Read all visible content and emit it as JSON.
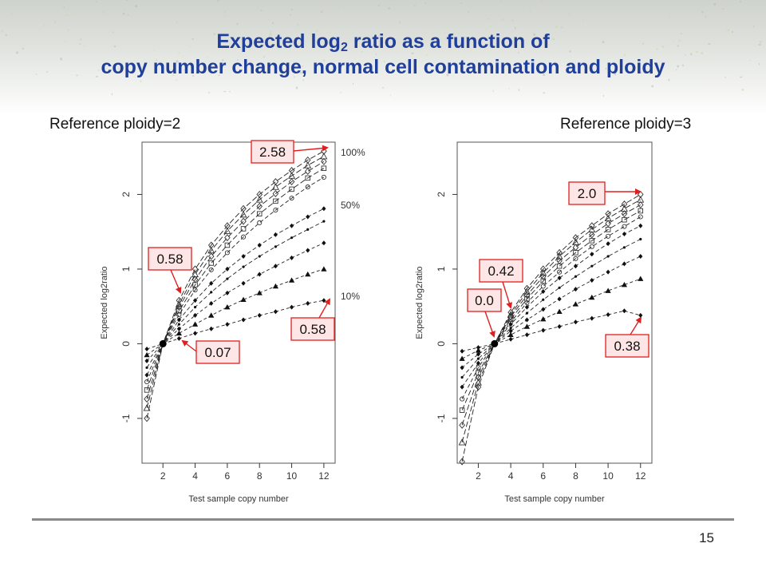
{
  "slide": {
    "title_line1_a": "Expected log",
    "title_line1_sub": "2",
    "title_line1_b": " ratio as a function of",
    "title_line2": "copy number change, normal cell contamination and ploidy",
    "page_number": "15"
  },
  "panels": {
    "left_label": "Reference ploidy=2",
    "right_label": "Reference ploidy=3"
  },
  "colors": {
    "title": "#1f3f9b",
    "arrow": "#e02020",
    "callout_fill": "#ffe6e6",
    "callout_border": "#e02020"
  },
  "chart_data": [
    {
      "type": "line",
      "reference_ploidy": 2,
      "xlabel": "Test sample copy number",
      "ylabel": "Expected log2ratio",
      "xlim": [
        0.7,
        12.7
      ],
      "ylim": [
        -1.6,
        2.7
      ],
      "xticks": [
        2,
        4,
        6,
        8,
        10,
        12
      ],
      "yticks": [
        -1,
        0,
        1,
        2
      ],
      "x": [
        1,
        2,
        3,
        4,
        5,
        6,
        7,
        8,
        9,
        10,
        11,
        12
      ],
      "series": [
        {
          "purity": 1.0,
          "values": [
            -1.0,
            0.0,
            0.58,
            1.0,
            1.32,
            1.58,
            1.81,
            2.0,
            2.17,
            2.32,
            2.46,
            2.58
          ]
        },
        {
          "purity": 0.9,
          "values": [
            -0.86,
            0.0,
            0.53,
            0.93,
            1.25,
            1.51,
            1.73,
            1.93,
            2.1,
            2.25,
            2.39,
            2.51
          ]
        },
        {
          "purity": 0.8,
          "values": [
            -0.74,
            0.0,
            0.49,
            0.86,
            1.17,
            1.42,
            1.64,
            1.84,
            2.01,
            2.17,
            2.31,
            2.44
          ]
        },
        {
          "purity": 0.7,
          "values": [
            -0.62,
            0.0,
            0.44,
            0.79,
            1.08,
            1.32,
            1.54,
            1.74,
            1.91,
            2.07,
            2.22,
            2.35
          ]
        },
        {
          "purity": 0.6,
          "values": [
            -0.51,
            0.0,
            0.39,
            0.72,
            0.99,
            1.22,
            1.43,
            1.62,
            1.79,
            1.95,
            2.1,
            2.23
          ]
        },
        {
          "purity": 0.5,
          "values": [
            -0.42,
            0.0,
            0.32,
            0.58,
            0.81,
            1.0,
            1.17,
            1.32,
            1.46,
            1.58,
            1.7,
            1.81
          ]
        },
        {
          "purity": 0.4,
          "values": [
            -0.32,
            0.0,
            0.26,
            0.49,
            0.69,
            0.87,
            1.03,
            1.17,
            1.3,
            1.42,
            1.53,
            1.64
          ]
        },
        {
          "purity": 0.3,
          "values": [
            -0.23,
            0.0,
            0.2,
            0.38,
            0.54,
            0.68,
            0.81,
            0.93,
            1.04,
            1.15,
            1.25,
            1.35
          ]
        },
        {
          "purity": 0.2,
          "values": [
            -0.15,
            0.0,
            0.14,
            0.26,
            0.38,
            0.49,
            0.59,
            0.68,
            0.77,
            0.85,
            0.93,
            1.0
          ]
        },
        {
          "purity": 0.1,
          "values": [
            -0.07,
            0.0,
            0.07,
            0.14,
            0.2,
            0.26,
            0.32,
            0.38,
            0.43,
            0.49,
            0.54,
            0.58
          ]
        }
      ],
      "purity_labels": [
        "100%",
        "50%",
        "10%"
      ],
      "callouts": [
        "2.58",
        "0.58",
        "0.07",
        "0.58"
      ]
    },
    {
      "type": "line",
      "reference_ploidy": 3,
      "xlabel": "Test sample copy number",
      "ylabel": "Expected log2ratio",
      "xlim": [
        0.7,
        12.7
      ],
      "ylim": [
        -1.6,
        2.7
      ],
      "xticks": [
        2,
        4,
        6,
        8,
        10,
        12
      ],
      "yticks": [
        -1,
        0,
        1,
        2
      ],
      "x": [
        1,
        2,
        3,
        4,
        5,
        6,
        7,
        8,
        9,
        10,
        11,
        12
      ],
      "series": [
        {
          "purity": 1.0,
          "values": [
            -1.58,
            -0.58,
            0.0,
            0.42,
            0.74,
            1.0,
            1.22,
            1.42,
            1.58,
            1.74,
            1.87,
            2.0
          ]
        },
        {
          "purity": 0.9,
          "values": [
            -1.32,
            -0.52,
            0.0,
            0.39,
            0.7,
            0.95,
            1.17,
            1.36,
            1.53,
            1.68,
            1.81,
            1.93
          ]
        },
        {
          "purity": 0.8,
          "values": [
            -1.09,
            -0.45,
            0.0,
            0.36,
            0.65,
            0.9,
            1.11,
            1.29,
            1.46,
            1.61,
            1.74,
            1.86
          ]
        },
        {
          "purity": 0.7,
          "values": [
            -0.89,
            -0.39,
            0.0,
            0.33,
            0.6,
            0.84,
            1.04,
            1.22,
            1.38,
            1.53,
            1.66,
            1.78
          ]
        },
        {
          "purity": 0.6,
          "values": [
            -0.74,
            -0.32,
            0.0,
            0.29,
            0.55,
            0.77,
            0.96,
            1.14,
            1.3,
            1.44,
            1.57,
            1.7
          ]
        },
        {
          "purity": 0.5,
          "values": [
            -0.58,
            -0.26,
            0.0,
            0.26,
            0.49,
            0.7,
            0.88,
            1.04,
            1.2,
            1.34,
            1.47,
            1.58
          ]
        },
        {
          "purity": 0.4,
          "values": [
            -0.45,
            -0.2,
            0.0,
            0.21,
            0.41,
            0.59,
            0.75,
            0.9,
            1.04,
            1.17,
            1.29,
            1.4
          ]
        },
        {
          "purity": 0.3,
          "values": [
            -0.32,
            -0.14,
            0.0,
            0.17,
            0.32,
            0.46,
            0.6,
            0.73,
            0.85,
            0.96,
            1.07,
            1.17
          ]
        },
        {
          "purity": 0.2,
          "values": [
            -0.2,
            -0.09,
            0.0,
            0.12,
            0.23,
            0.33,
            0.43,
            0.53,
            0.62,
            0.71,
            0.79,
            0.87
          ]
        },
        {
          "purity": 0.1,
          "values": [
            -0.1,
            -0.05,
            0.0,
            0.06,
            0.12,
            0.18,
            0.23,
            0.29,
            0.34,
            0.39,
            0.44,
            0.38
          ]
        }
      ],
      "callouts": [
        "2.0",
        "0.42",
        "0.0",
        "0.38"
      ]
    }
  ]
}
